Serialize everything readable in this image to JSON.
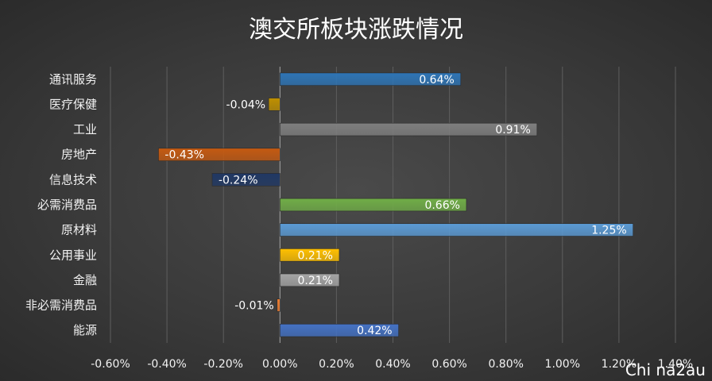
{
  "chart_data": {
    "type": "bar",
    "orientation": "horizontal",
    "title": "澳交所板块涨跌情况",
    "categories": [
      "通讯服务",
      "医疗保健",
      "工业",
      "房地产",
      "信息技术",
      "必需消费品",
      "原材料",
      "公用事业",
      "金融",
      "非必需消费品",
      "能源"
    ],
    "values": [
      0.64,
      -0.04,
      0.91,
      -0.43,
      -0.24,
      0.66,
      1.25,
      0.21,
      0.21,
      -0.01,
      0.42
    ],
    "data_labels": [
      "0.64%",
      "-0.04%",
      "0.91%",
      "-0.43%",
      "-0.24%",
      "0.66%",
      "1.25%",
      "0.21%",
      "0.21%",
      "-0.01%",
      "0.42%"
    ],
    "colors": [
      "#2e75b6",
      "#bf9000",
      "#7f7f7f",
      "#c55a11",
      "#203864",
      "#70ad47",
      "#5b9bd5",
      "#ffc000",
      "#a5a5a5",
      "#ed7d31",
      "#4472c4"
    ],
    "xlim": [
      -0.6,
      1.4
    ],
    "xticks": [
      -0.6,
      -0.4,
      -0.2,
      0.0,
      0.2,
      0.4,
      0.6,
      0.8,
      1.0,
      1.2,
      1.4
    ],
    "xtick_labels": [
      "-0.60%",
      "-0.40%",
      "-0.20%",
      "0.00%",
      "0.20%",
      "0.40%",
      "0.60%",
      "0.80%",
      "1.00%",
      "1.20%",
      "1.40%"
    ],
    "grid": "vertical",
    "legend": "none"
  },
  "watermark": "Chi na2au"
}
